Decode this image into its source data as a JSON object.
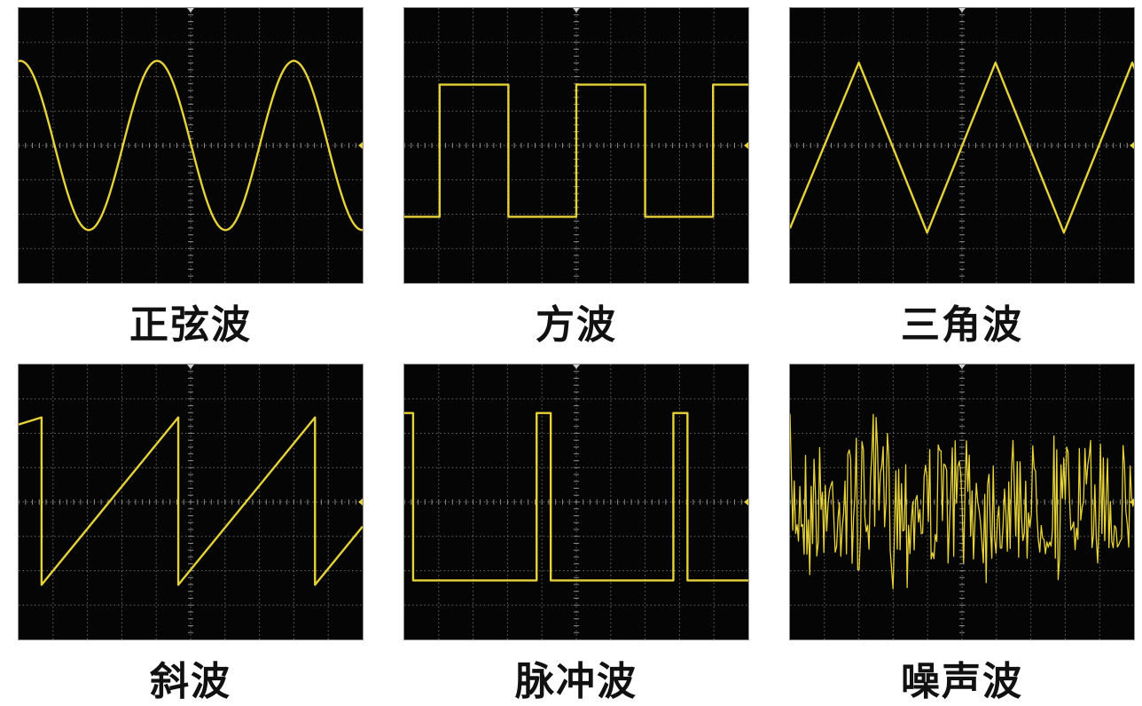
{
  "trace_color": "#e6d23a",
  "panels": [
    {
      "label": "正弦波",
      "wave": "sine"
    },
    {
      "label": "方波",
      "wave": "square"
    },
    {
      "label": "三角波",
      "wave": "triangle"
    },
    {
      "label": "斜波",
      "wave": "ramp"
    },
    {
      "label": "脉冲波",
      "wave": "pulse"
    },
    {
      "label": "噪声波",
      "wave": "noise"
    }
  ]
}
